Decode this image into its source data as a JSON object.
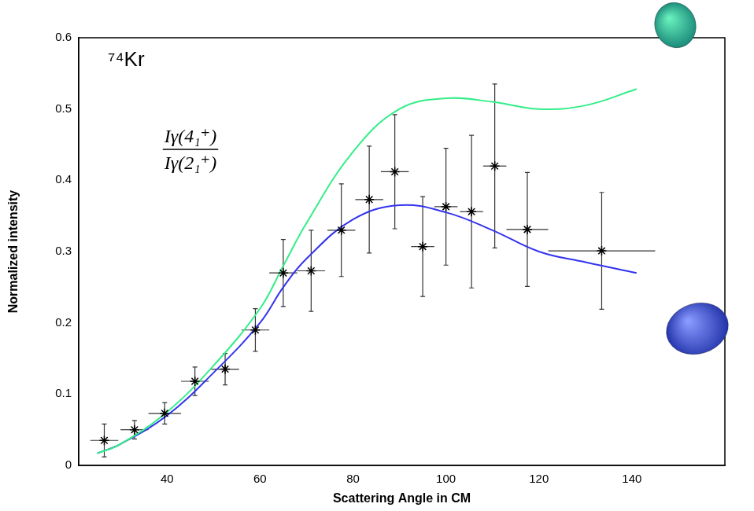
{
  "chart_data": {
    "type": "scatter",
    "annotations": [
      {
        "text": "⁷⁴Kr"
      },
      {
        "numerator": "Iγ(4₁⁺)",
        "denominator": "Iγ(2₁⁺)"
      }
    ],
    "x_label": "Scattering Angle in CM",
    "y_label": "Normalized intensity",
    "xlim": [
      21,
      160
    ],
    "xticks": [
      40,
      60,
      80,
      100,
      120,
      140
    ],
    "ylim": [
      0,
      0.6
    ],
    "yticks": [
      0,
      0.1,
      0.2,
      0.3,
      0.4,
      0.5,
      0.6
    ],
    "grid": false,
    "series": [
      {
        "type": "scatter",
        "color": "#000000",
        "marker": "star",
        "x": [
          26.5,
          33,
          39.5,
          46,
          52.5,
          59,
          65,
          71,
          77.5,
          83.5,
          89,
          95,
          100,
          105.5,
          110.5,
          117.5,
          133.5
        ],
        "values": [
          0.035,
          0.05,
          0.073,
          0.118,
          0.135,
          0.19,
          0.27,
          0.273,
          0.33,
          0.373,
          0.412,
          0.307,
          0.363,
          0.356,
          0.42,
          0.331,
          0.301
        ],
        "xerr": [
          3,
          3,
          3.5,
          3,
          3,
          3,
          3,
          3,
          3,
          3,
          3,
          2.5,
          2.5,
          2.5,
          2.5,
          4.5,
          11.5
        ],
        "yerr": [
          0.023,
          0.013,
          0.015,
          0.02,
          0.022,
          0.03,
          0.047,
          0.057,
          0.065,
          0.075,
          0.08,
          0.07,
          0.082,
          0.107,
          0.115,
          0.08,
          0.082
        ]
      },
      {
        "type": "line",
        "color": "#33ee88",
        "line_style": "solid",
        "x": [
          25,
          30,
          40,
          50,
          60,
          65,
          70,
          80,
          90,
          100,
          110,
          120,
          130,
          141
        ],
        "values": [
          0.017,
          0.03,
          0.075,
          0.14,
          0.22,
          0.28,
          0.34,
          0.44,
          0.5,
          0.515,
          0.51,
          0.5,
          0.505,
          0.528
        ]
      },
      {
        "type": "line",
        "color": "#3333ee",
        "line_style": "solid",
        "x": [
          25,
          30,
          40,
          50,
          60,
          65,
          70,
          80,
          90,
          100,
          110,
          120,
          130,
          141
        ],
        "values": [
          0.017,
          0.03,
          0.07,
          0.13,
          0.2,
          0.25,
          0.29,
          0.345,
          0.365,
          0.355,
          0.33,
          0.3,
          0.285,
          0.27
        ]
      }
    ]
  }
}
